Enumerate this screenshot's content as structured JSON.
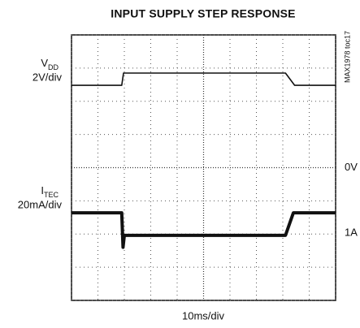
{
  "chart_data": {
    "type": "line",
    "title": "INPUT SUPPLY STEP RESPONSE",
    "xlabel": "10ms/div",
    "side_note": "MAX1978 toc17",
    "xlim": [
      0,
      10
    ],
    "ylim": [
      0,
      8
    ],
    "xticks": [
      0,
      1,
      2,
      3,
      4,
      5,
      6,
      7,
      8,
      9,
      10
    ],
    "yticks": [
      0,
      1,
      2,
      3,
      4,
      5,
      6,
      7,
      8
    ],
    "grid": true,
    "series": [
      {
        "name": "V",
        "sub": "DD",
        "scale": "2V/div",
        "color": "#111111",
        "x": [
          0,
          1.9,
          1.97,
          8.1,
          8.45,
          10
        ],
        "values": [
          6.48,
          6.48,
          6.85,
          6.85,
          6.48,
          6.48
        ]
      },
      {
        "name": "I",
        "sub": "TEC",
        "scale": "20mA/div",
        "color": "#111111",
        "x": [
          0,
          1.9,
          1.95,
          2.0,
          2.3,
          8.1,
          8.4,
          10
        ],
        "values": [
          2.64,
          2.64,
          1.6,
          1.96,
          1.96,
          1.96,
          2.64,
          2.64
        ]
      }
    ],
    "markers": [
      {
        "label": "0V",
        "value": 4
      },
      {
        "label": "1A",
        "value": 2.03
      }
    ]
  }
}
